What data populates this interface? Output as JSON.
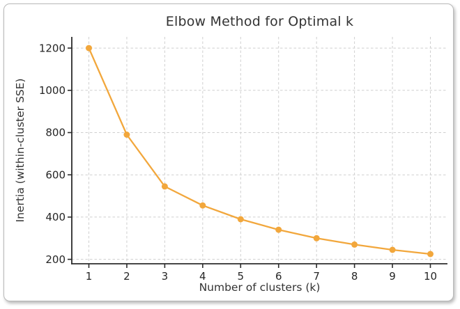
{
  "chart_data": {
    "type": "line",
    "title": "Elbow Method for Optimal k",
    "xlabel": "Number of clusters (k)",
    "ylabel": "Inertia (within-cluster SSE)",
    "x": [
      1,
      2,
      3,
      4,
      5,
      6,
      7,
      8,
      9,
      10
    ],
    "series": [
      {
        "name": "Inertia",
        "values": [
          1200,
          790,
          545,
          455,
          390,
          340,
          300,
          270,
          245,
          225
        ]
      }
    ],
    "xticks": [
      1,
      2,
      3,
      4,
      5,
      6,
      7,
      8,
      9,
      10
    ],
    "yticks": [
      200,
      400,
      600,
      800,
      1000,
      1200
    ],
    "xlim": [
      0.55,
      10.45
    ],
    "ylim": [
      179,
      1253
    ],
    "grid": true,
    "grid_line_style": "dashed",
    "line_style": "solid",
    "marker": "circle",
    "legend_position": "none",
    "colors": {
      "line": "#F2A73C",
      "grid": "#CFCFCF",
      "axis": "#2B2B2B",
      "tick_text": "#262626",
      "text": "#333333",
      "card_border": "#B9B9B9",
      "background": "#FFFFFF"
    }
  }
}
